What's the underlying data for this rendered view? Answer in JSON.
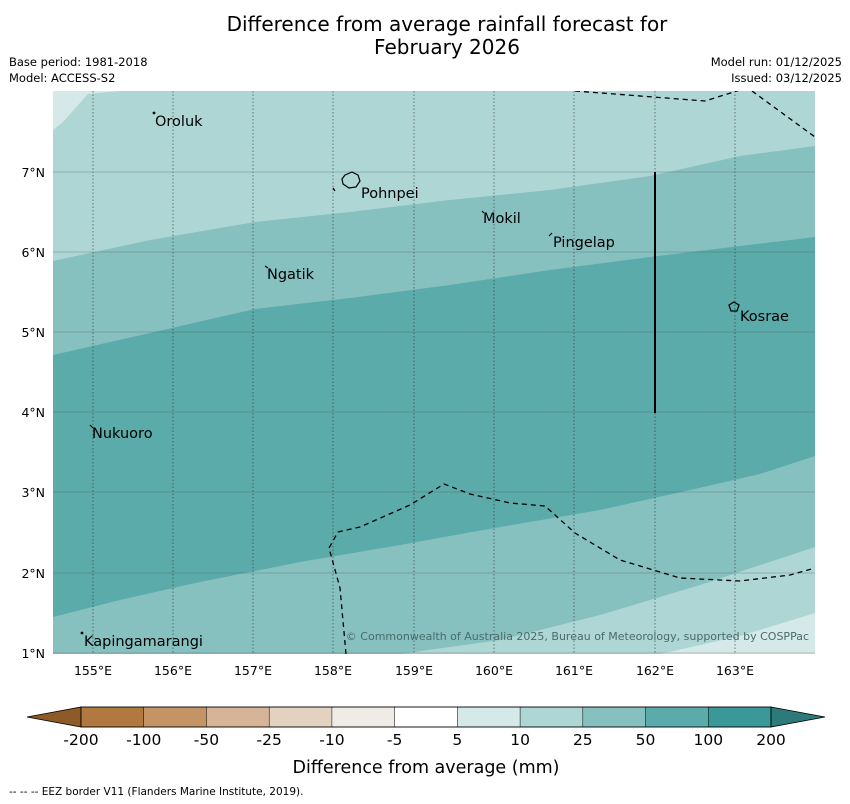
{
  "title_line1": "Difference from average rainfall forecast for",
  "title_line2": "February 2026",
  "meta": {
    "base_period": "Base period: 1981-2018",
    "model": "Model: ACCESS-S2",
    "model_run": "Model run: 01/12/2025",
    "issued": "Issued: 03/12/2025"
  },
  "map": {
    "lat_labels": [
      "7°N",
      "6°N",
      "5°N",
      "4°N",
      "3°N",
      "2°N",
      "1°N"
    ],
    "lon_labels": [
      "155°E",
      "156°E",
      "157°E",
      "158°E",
      "159°E",
      "160°E",
      "161°E",
      "162°E",
      "163°E"
    ],
    "places": [
      "Oroluk",
      "Pohnpei",
      "Mokil",
      "Pingelap",
      "Ngatik",
      "Kosrae",
      "Nukuoro",
      "Kapingamarangi"
    ],
    "copyright": "© Commonwealth of Australia 2025, Bureau of Meteorology, supported by COSPPac"
  },
  "legend": {
    "tick_labels": [
      "-200",
      "-100",
      "-50",
      "-25",
      "-10",
      "-5",
      "5",
      "10",
      "25",
      "50",
      "100",
      "200"
    ],
    "title": "Difference from average (mm)",
    "colors": [
      "#8e5a27",
      "#b1793f",
      "#c49467",
      "#d6b497",
      "#e4d2c1",
      "#efebe7",
      "#ffffff",
      "#d4e9e8",
      "#aed6d5",
      "#86c1c0",
      "#5aabaa",
      "#3a9898",
      "#2c7a7a"
    ]
  },
  "footer": "--  --  -- EEZ border V11 (Flanders Marine Institute, 2019)."
}
